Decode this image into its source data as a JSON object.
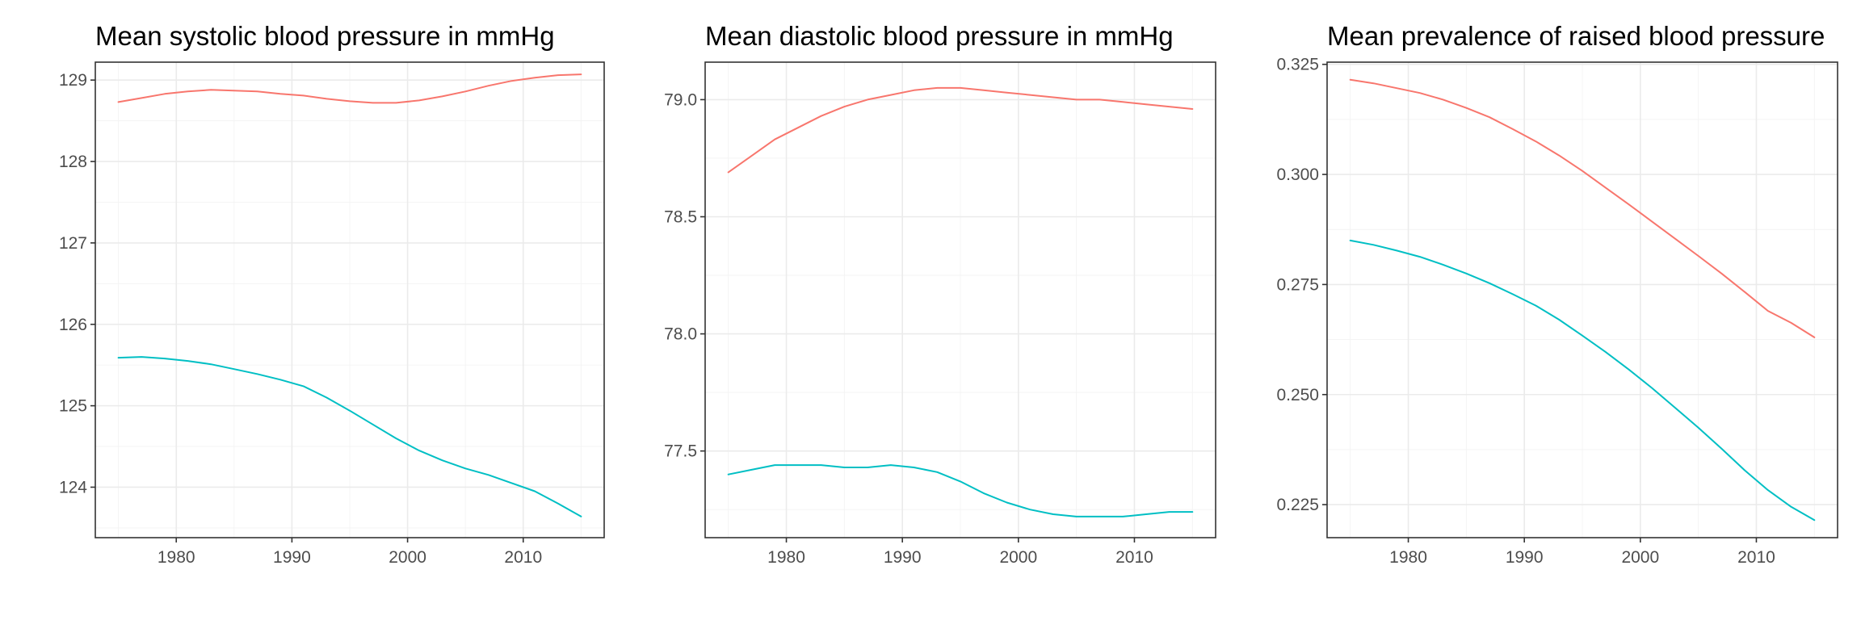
{
  "chart_data": [
    {
      "type": "line",
      "title": "Mean systolic blood pressure in mmHg",
      "xlabel": "",
      "ylabel": "",
      "xlim": [
        1973,
        2017
      ],
      "ylim": [
        123.38,
        129.22
      ],
      "x_ticks": [
        1980,
        1990,
        2000,
        2010
      ],
      "x_tick_labels": [
        "1980",
        "1990",
        "2000",
        "2010"
      ],
      "y_ticks": [
        124,
        125,
        126,
        127,
        128,
        129
      ],
      "y_tick_labels": [
        "124",
        "125",
        "126",
        "127",
        "128",
        "129"
      ],
      "grid": true,
      "legend": "none",
      "series": [
        {
          "color": "#F8766D",
          "points": [
            [
              1975,
              128.73
            ],
            [
              1977,
              128.78
            ],
            [
              1979,
              128.83
            ],
            [
              1981,
              128.86
            ],
            [
              1983,
              128.88
            ],
            [
              1985,
              128.87
            ],
            [
              1987,
              128.86
            ],
            [
              1989,
              128.83
            ],
            [
              1991,
              128.81
            ],
            [
              1993,
              128.77
            ],
            [
              1995,
              128.74
            ],
            [
              1997,
              128.72
            ],
            [
              1999,
              128.72
            ],
            [
              2001,
              128.75
            ],
            [
              2003,
              128.8
            ],
            [
              2005,
              128.86
            ],
            [
              2007,
              128.93
            ],
            [
              2009,
              128.99
            ],
            [
              2011,
              129.03
            ],
            [
              2013,
              129.06
            ],
            [
              2015,
              129.07
            ]
          ]
        },
        {
          "color": "#00BFC4",
          "points": [
            [
              1975,
              125.59
            ],
            [
              1977,
              125.6
            ],
            [
              1979,
              125.58
            ],
            [
              1981,
              125.55
            ],
            [
              1983,
              125.51
            ],
            [
              1985,
              125.45
            ],
            [
              1987,
              125.39
            ],
            [
              1989,
              125.32
            ],
            [
              1991,
              125.24
            ],
            [
              1993,
              125.1
            ],
            [
              1995,
              124.94
            ],
            [
              1997,
              124.77
            ],
            [
              1999,
              124.6
            ],
            [
              2001,
              124.45
            ],
            [
              2003,
              124.33
            ],
            [
              2005,
              124.23
            ],
            [
              2007,
              124.15
            ],
            [
              2009,
              124.05
            ],
            [
              2011,
              123.95
            ],
            [
              2013,
              123.8
            ],
            [
              2015,
              123.64
            ]
          ]
        }
      ]
    },
    {
      "type": "line",
      "title": "Mean diastolic blood pressure in mmHg",
      "xlabel": "",
      "ylabel": "",
      "xlim": [
        1973,
        2017
      ],
      "ylim": [
        77.13,
        79.16
      ],
      "x_ticks": [
        1980,
        1990,
        2000,
        2010
      ],
      "x_tick_labels": [
        "1980",
        "1990",
        "2000",
        "2010"
      ],
      "y_ticks": [
        77.5,
        78.0,
        78.5,
        79.0
      ],
      "y_tick_labels": [
        "77.5",
        "78.0",
        "78.5",
        "79.0"
      ],
      "grid": true,
      "legend": "none",
      "series": [
        {
          "color": "#F8766D",
          "points": [
            [
              1975,
              78.69
            ],
            [
              1977,
              78.76
            ],
            [
              1979,
              78.83
            ],
            [
              1981,
              78.88
            ],
            [
              1983,
              78.93
            ],
            [
              1985,
              78.97
            ],
            [
              1987,
              79.0
            ],
            [
              1989,
              79.02
            ],
            [
              1991,
              79.04
            ],
            [
              1993,
              79.05
            ],
            [
              1995,
              79.05
            ],
            [
              1997,
              79.04
            ],
            [
              1999,
              79.03
            ],
            [
              2001,
              79.02
            ],
            [
              2003,
              79.01
            ],
            [
              2005,
              79.0
            ],
            [
              2007,
              79.0
            ],
            [
              2009,
              78.99
            ],
            [
              2011,
              78.98
            ],
            [
              2013,
              78.97
            ],
            [
              2015,
              78.96
            ]
          ]
        },
        {
          "color": "#00BFC4",
          "points": [
            [
              1975,
              77.4
            ],
            [
              1977,
              77.42
            ],
            [
              1979,
              77.44
            ],
            [
              1981,
              77.44
            ],
            [
              1983,
              77.44
            ],
            [
              1985,
              77.43
            ],
            [
              1987,
              77.43
            ],
            [
              1989,
              77.44
            ],
            [
              1991,
              77.43
            ],
            [
              1993,
              77.41
            ],
            [
              1995,
              77.37
            ],
            [
              1997,
              77.32
            ],
            [
              1999,
              77.28
            ],
            [
              2001,
              77.25
            ],
            [
              2003,
              77.23
            ],
            [
              2005,
              77.22
            ],
            [
              2007,
              77.22
            ],
            [
              2009,
              77.22
            ],
            [
              2011,
              77.23
            ],
            [
              2013,
              77.24
            ],
            [
              2015,
              77.24
            ]
          ]
        }
      ]
    },
    {
      "type": "line",
      "title": "Mean prevalence of raised blood pressure",
      "xlabel": "",
      "ylabel": "",
      "xlim": [
        1973,
        2017
      ],
      "ylim": [
        0.2175,
        0.3255
      ],
      "x_ticks": [
        1980,
        1990,
        2000,
        2010
      ],
      "x_tick_labels": [
        "1980",
        "1990",
        "2000",
        "2010"
      ],
      "y_ticks": [
        0.225,
        0.25,
        0.275,
        0.3,
        0.325
      ],
      "y_tick_labels": [
        "0.225",
        "0.250",
        "0.275",
        "0.300",
        "0.325"
      ],
      "grid": true,
      "legend": "none",
      "series": [
        {
          "color": "#F8766D",
          "points": [
            [
              1975,
              0.3215
            ],
            [
              1977,
              0.3207
            ],
            [
              1979,
              0.3196
            ],
            [
              1981,
              0.3185
            ],
            [
              1983,
              0.317
            ],
            [
              1985,
              0.3151
            ],
            [
              1987,
              0.313
            ],
            [
              1989,
              0.3103
            ],
            [
              1991,
              0.3075
            ],
            [
              1993,
              0.3043
            ],
            [
              1995,
              0.3008
            ],
            [
              1997,
              0.297
            ],
            [
              1999,
              0.2932
            ],
            [
              2001,
              0.2893
            ],
            [
              2003,
              0.2854
            ],
            [
              2005,
              0.2815
            ],
            [
              2007,
              0.2775
            ],
            [
              2009,
              0.2733
            ],
            [
              2011,
              0.269
            ],
            [
              2013,
              0.2663
            ],
            [
              2015,
              0.263
            ]
          ]
        },
        {
          "color": "#00BFC4",
          "points": [
            [
              1975,
              0.285
            ],
            [
              1977,
              0.284
            ],
            [
              1979,
              0.2827
            ],
            [
              1981,
              0.2813
            ],
            [
              1983,
              0.2795
            ],
            [
              1985,
              0.2775
            ],
            [
              1987,
              0.2753
            ],
            [
              1989,
              0.2728
            ],
            [
              1991,
              0.2702
            ],
            [
              1993,
              0.267
            ],
            [
              1995,
              0.2634
            ],
            [
              1997,
              0.2597
            ],
            [
              1999,
              0.2557
            ],
            [
              2001,
              0.2515
            ],
            [
              2003,
              0.247
            ],
            [
              2005,
              0.2425
            ],
            [
              2007,
              0.2377
            ],
            [
              2009,
              0.2328
            ],
            [
              2011,
              0.2283
            ],
            [
              2013,
              0.2245
            ],
            [
              2015,
              0.2215
            ]
          ]
        }
      ]
    }
  ]
}
